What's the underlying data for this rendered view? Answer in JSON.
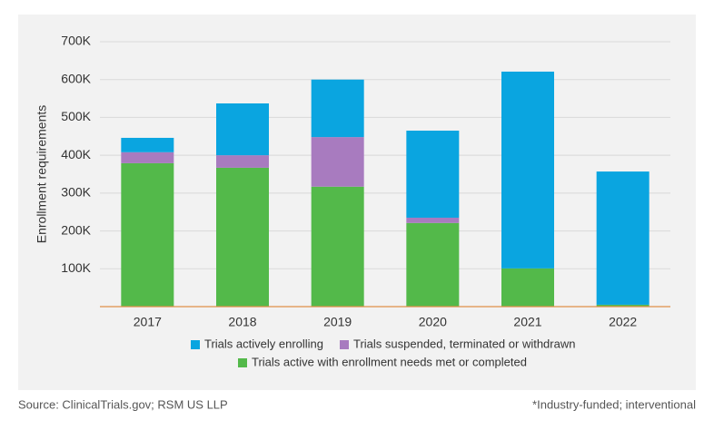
{
  "chart_data": {
    "type": "stacked_bar",
    "y_label": "Enrollment requirements",
    "categories": [
      "2017",
      "2018",
      "2019",
      "2020",
      "2021",
      "2022"
    ],
    "series": [
      {
        "name": "Trials active with enrollment needs met or completed",
        "color": "#53b94a",
        "values": [
          379000,
          367000,
          317000,
          221000,
          101000,
          5000
        ]
      },
      {
        "name": "Trials suspended, terminated or withdrawn",
        "color": "#a87bbf",
        "values": [
          29000,
          33000,
          131000,
          14000,
          0,
          0
        ]
      },
      {
        "name": "Trials actively enrolling",
        "color": "#0aa5e0",
        "values": [
          38000,
          137000,
          152000,
          230000,
          520000,
          352000
        ]
      }
    ],
    "ylim": [
      0,
      700000
    ],
    "yticks": [
      {
        "value": 100000,
        "label": "100K"
      },
      {
        "value": 200000,
        "label": "200K"
      },
      {
        "value": 300000,
        "label": "300K"
      },
      {
        "value": 400000,
        "label": "400K"
      },
      {
        "value": 500000,
        "label": "500K"
      },
      {
        "value": 600000,
        "label": "600K"
      },
      {
        "value": 700000,
        "label": "700K"
      }
    ],
    "grid": true,
    "source": "Source: ClinicalTrials.gov; RSM US LLP",
    "note": "*Industry-funded; interventional"
  }
}
